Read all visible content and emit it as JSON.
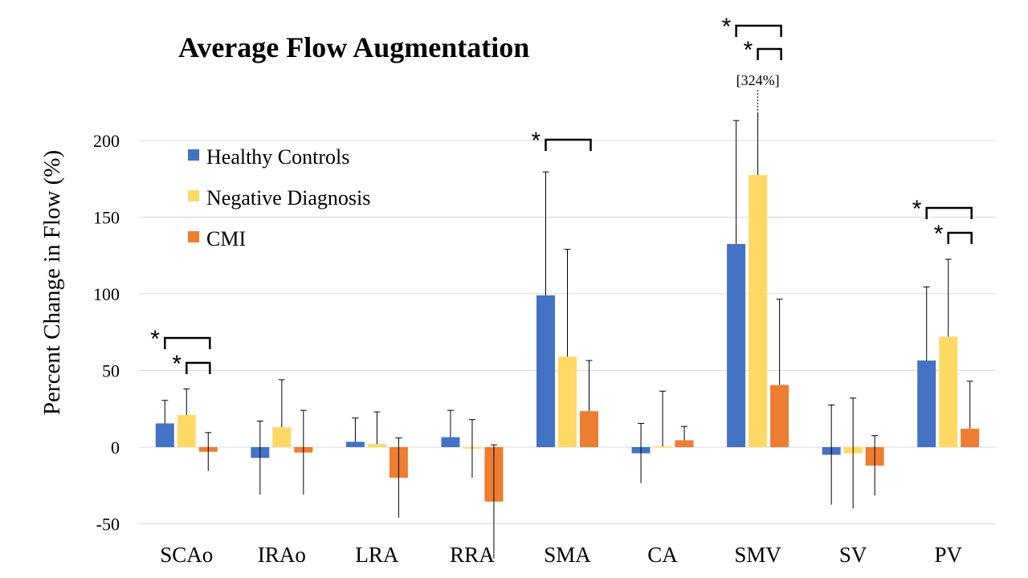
{
  "chart_data": {
    "type": "bar",
    "title": "Average Flow Augmentation",
    "ylabel": "Percent Change in Flow (%)",
    "xlabel": "",
    "ylim": [
      -50,
      210
    ],
    "yticks": [
      -50,
      0,
      50,
      100,
      150,
      200
    ],
    "grid": true,
    "legend_position": "top-left",
    "categories": [
      "SCAo",
      "IRAo",
      "LRA",
      "RRA",
      "SMA",
      "CA",
      "SMV",
      "SV",
      "PV"
    ],
    "series": [
      {
        "name": "Healthy Controls",
        "color": "#4472C4",
        "values": [
          15.5,
          -7,
          3.5,
          6.5,
          99,
          -4,
          132.5,
          -5,
          56.5
        ],
        "error": [
          15,
          24,
          15.5,
          17.5,
          80.5,
          19.5,
          80.5,
          32.5,
          48
        ]
      },
      {
        "name": "Negative Diagnosis",
        "color": "#FFD966",
        "values": [
          21,
          13,
          2,
          -1,
          59,
          0.5,
          177.5,
          -4,
          72
        ],
        "error": [
          17,
          31,
          21,
          19,
          70,
          36,
          146.5,
          36,
          50.5
        ]
      },
      {
        "name": "CMI",
        "color": "#ED7D31",
        "values": [
          -3,
          -3.5,
          -20,
          -35.5,
          23.5,
          4.5,
          40.5,
          -12,
          12
        ],
        "error": [
          12.5,
          27.5,
          26,
          37,
          33,
          9,
          56,
          19.5,
          31
        ]
      }
    ],
    "annotations": {
      "note": "[324%]",
      "star": "*",
      "brackets": [
        {
          "category": "SCAo",
          "from_series": 0,
          "to_series": 2,
          "level": 2
        },
        {
          "category": "SCAo",
          "from_series": 1,
          "to_series": 2,
          "level": 1
        },
        {
          "category": "SMA",
          "from_series": 0,
          "to_series": 2,
          "level": 1
        },
        {
          "category": "SMV",
          "from_series": 0,
          "to_series": 2,
          "level": 2
        },
        {
          "category": "SMV",
          "from_series": 1,
          "to_series": 2,
          "level": 1
        },
        {
          "category": "PV",
          "from_series": 0,
          "to_series": 2,
          "level": 2
        },
        {
          "category": "PV",
          "from_series": 1,
          "to_series": 2,
          "level": 1
        }
      ]
    }
  }
}
